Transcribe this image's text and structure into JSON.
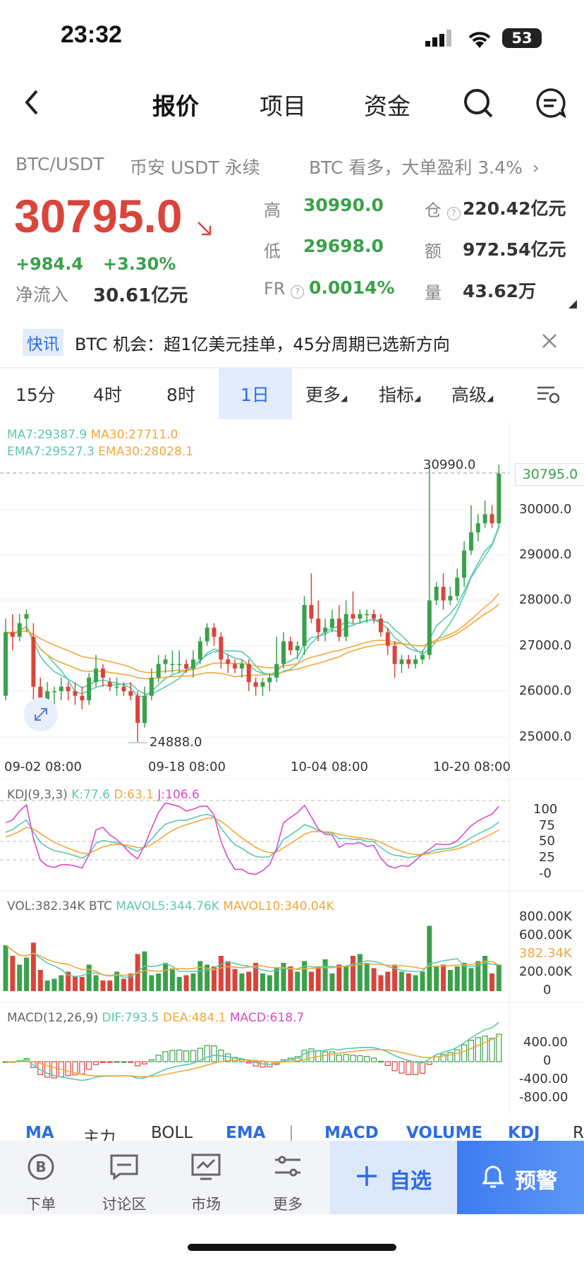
{
  "status": {
    "time": "23:32",
    "battery": "53"
  },
  "nav": {
    "tabs": [
      "报价",
      "项目",
      "资金"
    ]
  },
  "ticker": {
    "pair": "BTC/USDT",
    "market": "币安 USDT 永续",
    "promo": "BTC 看多，大单盈利 3.4%"
  },
  "price": {
    "last": "30795.0",
    "change": "+984.4",
    "change_pct": "+3.30%",
    "net_inflow_label": "净流入",
    "net_inflow": "30.61亿元"
  },
  "quote": {
    "high_label": "高",
    "high": "30990.0",
    "low_label": "低",
    "low": "29698.0",
    "fr_label": "FR",
    "fr": "0.0014%",
    "oi_label": "仓",
    "oi": "220.42亿元",
    "amount_label": "额",
    "amount": "972.54亿元",
    "volume_label": "量",
    "volume": "43.62万"
  },
  "news": {
    "tag": "快讯",
    "text": "BTC 机会：超1亿美元挂单，45分周期已选新方向"
  },
  "timeframes": {
    "t1": "15分",
    "t2": "4时",
    "t3": "8时",
    "t4": "1日",
    "more": "更多",
    "indicator": "指标",
    "advanced": "高级"
  },
  "main_chart": {
    "ma7": "MA7:29387.9",
    "ma30": "MA30:27711.0",
    "ema7": "EMA7:29527.3",
    "ema30": "EMA30:28028.1",
    "high_mark": "30990.0",
    "low_mark": "24888.0",
    "current": "30795.0",
    "y_ticks": [
      "30000.0",
      "29000.0",
      "28000.0",
      "27000.0",
      "26000.0",
      "25000.0"
    ],
    "x_ticks": [
      "09-02 08:00",
      "09-18 08:00",
      "10-04 08:00",
      "10-20 08:00"
    ]
  },
  "kdj": {
    "title": "KDJ(9,3,3)",
    "k": "K:77.6",
    "d": "D:63.1",
    "j": "J:106.6",
    "ticks": [
      "100",
      "75",
      "50",
      "25",
      "-0"
    ]
  },
  "vol": {
    "title": "VOL:382.34K BTC",
    "mavol5": "MAVOL5:344.76K",
    "mavol10": "MAVOL10:340.04K",
    "ticks": [
      "800.00K",
      "600.00K",
      "200.00K",
      "0"
    ],
    "current": "382.34K"
  },
  "macd": {
    "title": "MACD(12,26,9)",
    "dif": "DIF:793.5",
    "dea": "DEA:484.1",
    "macd": "MACD:618.7",
    "ticks": [
      "400.00",
      "0",
      "-400.00",
      "-800.00"
    ]
  },
  "indicator_tabs": {
    "ma": "MA",
    "main": "主力",
    "boll": "BOLL",
    "ema": "EMA",
    "macd": "MACD",
    "volume": "VOLUME",
    "kdj": "KDJ",
    "r": "R"
  },
  "bottom_nav": {
    "order": "下单",
    "discuss": "讨论区",
    "market": "市场",
    "more": "更多"
  },
  "actions": {
    "favorite": "自选",
    "alert": "预警"
  },
  "colors": {
    "up": "#3aa14a",
    "down": "#d9453b",
    "accent": "#2d6be6",
    "ma7": "#5ac8b0",
    "ma30": "#f2a83a",
    "j_line": "#d94bc8"
  },
  "candles": [
    [
      25900,
      27300,
      25800,
      27600
    ],
    [
      27300,
      27200,
      26900,
      27700
    ],
    [
      27200,
      27500,
      27100,
      27700
    ],
    [
      27600,
      27700,
      27300,
      27800
    ],
    [
      27200,
      26100,
      25600,
      27500
    ],
    [
      26100,
      25800,
      25500,
      26300
    ],
    [
      25800,
      26000,
      25700,
      26200
    ],
    [
      26000,
      26000,
      25700,
      26100
    ],
    [
      26000,
      26100,
      25800,
      26300
    ],
    [
      26100,
      26000,
      25800,
      26200
    ],
    [
      26000,
      25900,
      25700,
      26200
    ],
    [
      25900,
      25800,
      25600,
      26100
    ],
    [
      25800,
      26300,
      25700,
      26400
    ],
    [
      26200,
      26500,
      26100,
      26800
    ],
    [
      26500,
      26300,
      26100,
      26600
    ],
    [
      26200,
      26100,
      26000,
      26300
    ],
    [
      26100,
      26100,
      25900,
      26300
    ],
    [
      26100,
      26000,
      25900,
      26200
    ],
    [
      26000,
      25900,
      25800,
      26200
    ],
    [
      25900,
      25300,
      24888,
      26000
    ],
    [
      25300,
      25900,
      25200,
      26100
    ],
    [
      25900,
      26300,
      25800,
      26500
    ],
    [
      26300,
      26600,
      26200,
      26800
    ],
    [
      26600,
      26700,
      26400,
      26800
    ],
    [
      26600,
      26600,
      26400,
      26900
    ],
    [
      26600,
      26600,
      26400,
      26900
    ],
    [
      26600,
      26500,
      26400,
      26700
    ],
    [
      26500,
      26700,
      26300,
      26900
    ],
    [
      26700,
      27100,
      26600,
      27200
    ],
    [
      27100,
      27400,
      27000,
      27500
    ],
    [
      27400,
      27200,
      27000,
      27500
    ],
    [
      27200,
      26700,
      26500,
      27300
    ],
    [
      26700,
      26600,
      26400,
      26800
    ],
    [
      26600,
      26500,
      26400,
      26700
    ],
    [
      26500,
      26600,
      26300,
      26700
    ],
    [
      26600,
      26200,
      26000,
      26700
    ],
    [
      26200,
      26100,
      25900,
      26300
    ],
    [
      26100,
      26200,
      25900,
      26300
    ],
    [
      26200,
      26300,
      26000,
      26400
    ],
    [
      26300,
      26600,
      26200,
      27200
    ],
    [
      26600,
      27100,
      26500,
      27300
    ],
    [
      27100,
      26900,
      26800,
      27200
    ],
    [
      26900,
      27000,
      26700,
      27100
    ],
    [
      27000,
      27900,
      26800,
      28100
    ],
    [
      27900,
      27600,
      27500,
      28600
    ],
    [
      27600,
      27300,
      27100,
      28000
    ],
    [
      27300,
      27400,
      27100,
      27600
    ],
    [
      27400,
      27600,
      27300,
      27800
    ],
    [
      27600,
      27200,
      27100,
      27900
    ],
    [
      27200,
      27700,
      27100,
      28000
    ],
    [
      27700,
      27600,
      27500,
      28200
    ],
    [
      27600,
      27700,
      27500,
      27800
    ],
    [
      27700,
      27700,
      27500,
      27800
    ],
    [
      27700,
      27600,
      27500,
      27800
    ],
    [
      27600,
      27300,
      27200,
      27700
    ],
    [
      27300,
      27000,
      26800,
      27400
    ],
    [
      27000,
      26600,
      26300,
      27100
    ],
    [
      26600,
      26700,
      26400,
      26800
    ],
    [
      26700,
      26600,
      26500,
      26800
    ],
    [
      26600,
      26700,
      26500,
      26800
    ],
    [
      26700,
      26800,
      26600,
      26900
    ],
    [
      26800,
      28000,
      26700,
      30990
    ],
    [
      28000,
      28300,
      27900,
      28400
    ],
    [
      28300,
      28000,
      27800,
      28600
    ],
    [
      28000,
      28100,
      27900,
      28300
    ],
    [
      28100,
      28500,
      28000,
      28700
    ],
    [
      28500,
      29100,
      28300,
      29300
    ],
    [
      29100,
      29500,
      29000,
      30100
    ],
    [
      29500,
      29700,
      29300,
      29900
    ],
    [
      29700,
      29900,
      29600,
      30200
    ],
    [
      29900,
      29700,
      29600,
      30100
    ],
    [
      29700,
      30795,
      29600,
      30990
    ]
  ],
  "volumes": [
    52,
    40,
    30,
    38,
    55,
    24,
    12,
    14,
    18,
    22,
    17,
    16,
    30,
    18,
    12,
    12,
    22,
    14,
    20,
    42,
    45,
    18,
    20,
    32,
    26,
    16,
    18,
    20,
    34,
    30,
    28,
    40,
    34,
    25,
    20,
    22,
    32,
    20,
    18,
    26,
    32,
    28,
    22,
    34,
    22,
    28,
    36,
    20,
    30,
    28,
    40,
    42,
    32,
    26,
    18,
    22,
    30,
    22,
    20,
    18,
    22,
    74,
    28,
    30,
    24,
    28,
    32,
    26,
    34,
    40,
    20,
    30
  ]
}
